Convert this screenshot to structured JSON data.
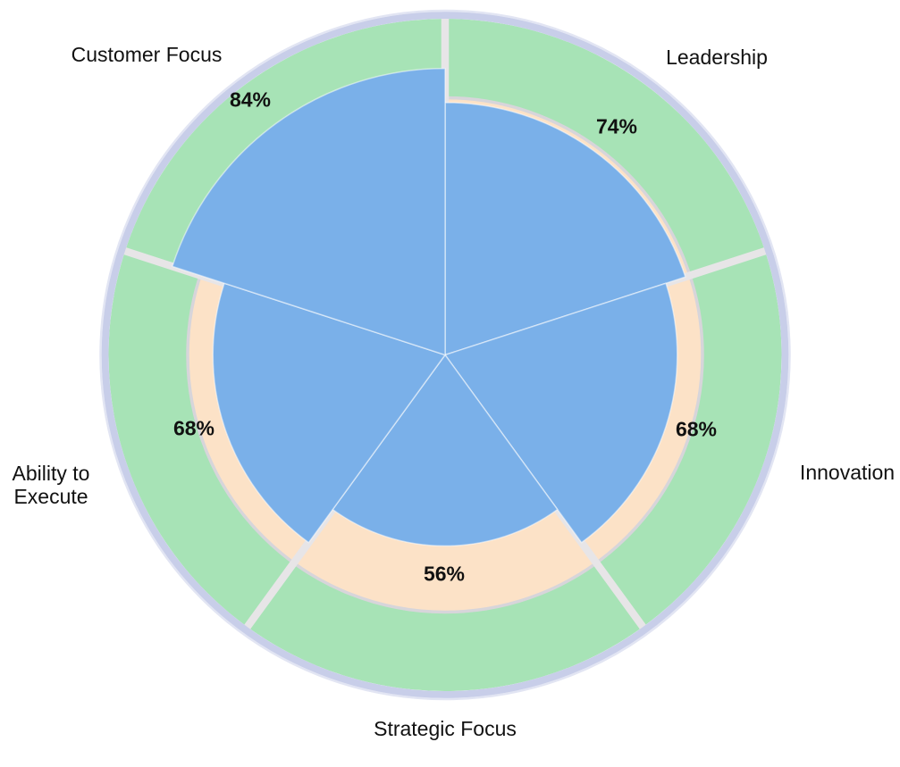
{
  "chart_data": {
    "type": "pie",
    "variant": "radial-sector-gauge-wheel",
    "unit": "%",
    "start_angle_deg": 0,
    "direction": "clockwise-from-top",
    "title": "",
    "legend": "none",
    "categories": [
      {
        "label": "Leadership",
        "display": "Leadership",
        "value": 74,
        "value_label": "74%"
      },
      {
        "label": "Innovation",
        "display": "Innovation",
        "value": 68,
        "value_label": "68%"
      },
      {
        "label": "Strategic Focus",
        "display": "Strategic Focus",
        "value": 56,
        "value_label": "56%"
      },
      {
        "label": "Ability to Execute",
        "display": "Ability to\nExecute",
        "value": 68,
        "value_label": "68%"
      },
      {
        "label": "Customer Focus",
        "display": "Customer Focus",
        "value": 84,
        "value_label": "84%"
      }
    ],
    "colors": {
      "wedge_blue": "#7ab0e9",
      "wedge_edge": "rgba(255,255,255,0.5)",
      "outer_zone_green": "#a7e3b6",
      "inner_zone_peach": "#fce2c7",
      "zone_boundary_gray": "#d7d5da",
      "sector_gap_gray": "#e7e5e7",
      "outer_ring_lavender": "#c8cee9",
      "outer_ring_edge": "#e2e5f3",
      "label_text": "#111111",
      "background": "#ffffff"
    }
  }
}
